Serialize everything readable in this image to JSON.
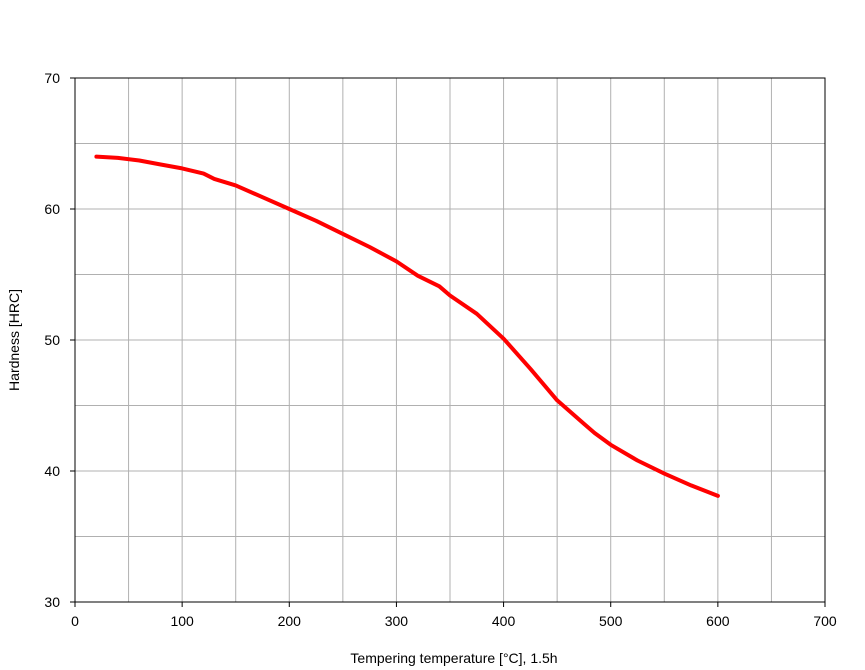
{
  "chart_data": {
    "type": "line",
    "title": "",
    "xlabel": "Tempering temperature [°C], 1.5h",
    "ylabel": "Hardness [HRC]",
    "xlim": [
      0,
      700
    ],
    "ylim": [
      30,
      70
    ],
    "xticks": [
      0,
      100,
      200,
      300,
      400,
      500,
      600,
      700
    ],
    "yticks": [
      30,
      40,
      50,
      60,
      70
    ],
    "xtick_labels": [
      "0",
      "100",
      "200",
      "300",
      "400",
      "500",
      "600",
      "700"
    ],
    "ytick_labels": [
      "30",
      "40",
      "50",
      "60",
      "70"
    ],
    "grid": true,
    "legend": "none",
    "series": [
      {
        "color": "#ff0000",
        "x": [
          20,
          40,
          60,
          80,
          100,
          120,
          130,
          150,
          175,
          200,
          225,
          250,
          275,
          300,
          320,
          340,
          350,
          375,
          400,
          425,
          450,
          475,
          485,
          500,
          525,
          550,
          575,
          600
        ],
        "y": [
          64.0,
          63.9,
          63.7,
          63.4,
          63.1,
          62.7,
          62.3,
          61.8,
          60.9,
          60.0,
          59.1,
          58.1,
          57.1,
          56.0,
          54.9,
          54.1,
          53.4,
          52.0,
          50.1,
          47.8,
          45.4,
          43.6,
          42.9,
          42.0,
          40.8,
          39.8,
          38.9,
          38.1
        ]
      }
    ]
  }
}
